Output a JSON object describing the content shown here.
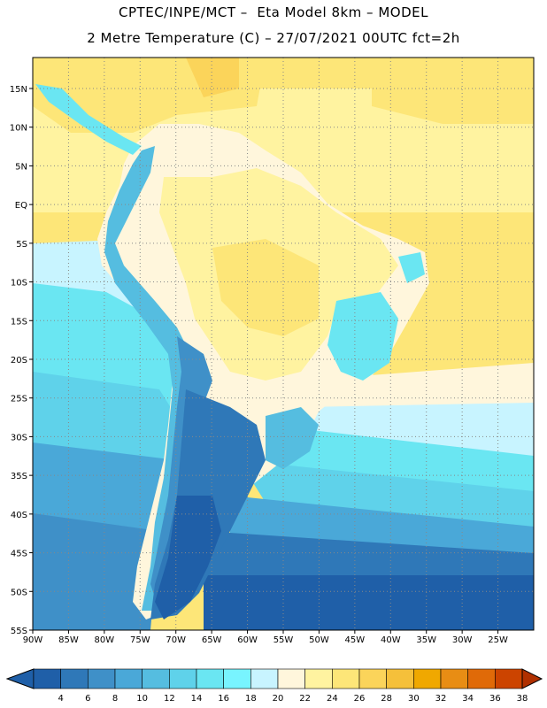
{
  "header": {
    "line1": "CPTEC/INPE/MCT –  Eta Model 8km – MODEL",
    "line2": "2 Metre Temperature (C) – 27/07/2021 00UTC fct=2h"
  },
  "map": {
    "lon_range": [
      -90,
      -20
    ],
    "lat_range": [
      -55,
      19
    ],
    "lon_ticks": [
      -90,
      -85,
      -80,
      -75,
      -70,
      -65,
      -60,
      -55,
      -50,
      -45,
      -40,
      -35,
      -30,
      -25
    ],
    "lon_tick_labels": [
      "90W",
      "85W",
      "80W",
      "75W",
      "70W",
      "65W",
      "60W",
      "55W",
      "50W",
      "45W",
      "40W",
      "35W",
      "30W",
      "25W"
    ],
    "lat_ticks": [
      15,
      10,
      5,
      0,
      -5,
      -10,
      -15,
      -20,
      -25,
      -30,
      -35,
      -40,
      -45,
      -50,
      -55
    ],
    "lat_tick_labels": [
      "15N",
      "10N",
      "5N",
      "EQ",
      "5S",
      "10S",
      "15S",
      "20S",
      "25S",
      "30S",
      "35S",
      "40S",
      "45S",
      "50S",
      "55S"
    ],
    "grid": "dotted"
  },
  "colorbar": {
    "labels": [
      "4",
      "6",
      "8",
      "10",
      "12",
      "14",
      "16",
      "18",
      "20",
      "22",
      "24",
      "26",
      "28",
      "30",
      "32",
      "34",
      "36",
      "38"
    ],
    "colors": [
      "#1f5fa8",
      "#2f78b8",
      "#3f90c8",
      "#4aa8d8",
      "#55bde0",
      "#5fd2ea",
      "#6ae6f2",
      "#78f4ff",
      "#c8f4ff",
      "#fff6dc",
      "#fff3a0",
      "#fde678",
      "#fbd45a",
      "#f5c03a",
      "#f0a800",
      "#e88d14",
      "#e06a08",
      "#cc4400",
      "#b03000"
    ]
  }
}
